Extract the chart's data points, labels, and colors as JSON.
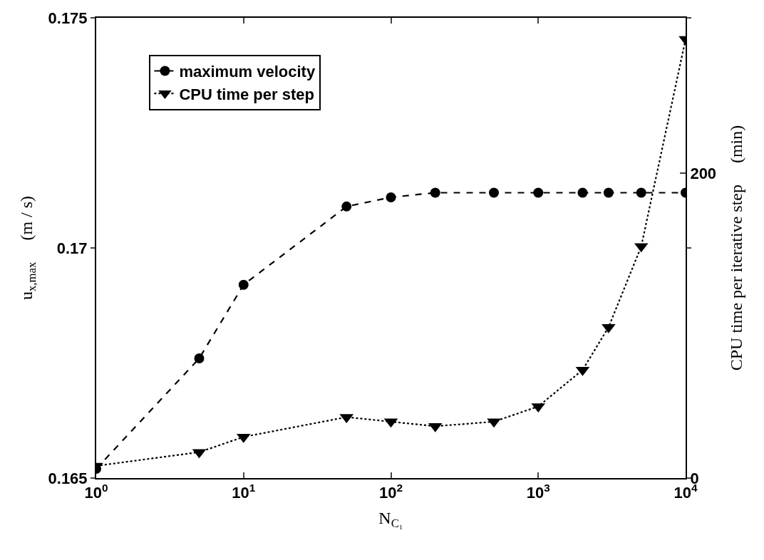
{
  "chart_data": {
    "type": "line",
    "xlabel": "N$_{C₁}$",
    "ylabel": "u$_{x,max}$     (m / s)",
    "y2label": "CPU time per iterative step     (min)",
    "x": [
      1,
      5,
      10,
      50,
      100,
      200,
      500,
      1000,
      2000,
      3000,
      5000,
      10000
    ],
    "series": [
      {
        "name": "maximum velocity",
        "color": "#000000",
        "marker": "circle",
        "line_style": "dashed",
        "values": [
          0.1652,
          0.1676,
          0.1692,
          0.1709,
          0.1711,
          0.1712,
          0.1712,
          0.1712,
          0.1712,
          0.1712,
          0.1712,
          0.1712
        ]
      },
      {
        "name": "CPU time per step",
        "color": "#000000",
        "marker": "triangle",
        "line_style": "dotted",
        "axis": "y2",
        "values": [
          8,
          17,
          27,
          40,
          37,
          34,
          37,
          47,
          71,
          99,
          152,
          288
        ]
      }
    ],
    "log": "x",
    "xlim": [
      1,
      10000
    ],
    "xticks": [
      {
        "value": 1,
        "label": "10$^{0}$"
      },
      {
        "value": 10,
        "label": "10$^{1}$"
      },
      {
        "value": 100,
        "label": "10$^{2}$"
      },
      {
        "value": 1000,
        "label": "10$^{3}$"
      },
      {
        "value": 10000,
        "label": "10$^{4}$"
      }
    ],
    "ylim": [
      0.165,
      0.175
    ],
    "yticks": [
      0.165,
      0.17,
      0.175
    ],
    "y2lim": [
      0,
      302
    ],
    "y2ticks": [
      0,
      200
    ],
    "grid": false,
    "legend": "top left"
  }
}
